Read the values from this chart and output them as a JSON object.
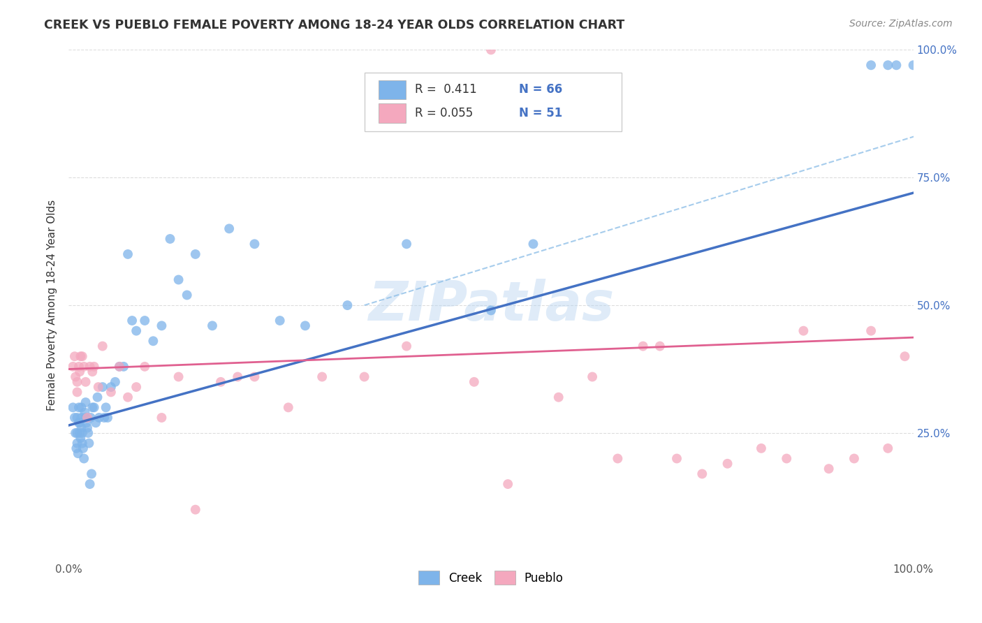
{
  "title": "CREEK VS PUEBLO FEMALE POVERTY AMONG 18-24 YEAR OLDS CORRELATION CHART",
  "source": "Source: ZipAtlas.com",
  "ylabel": "Female Poverty Among 18-24 Year Olds",
  "xlim": [
    0,
    1.0
  ],
  "ylim": [
    0,
    1.0
  ],
  "xticks": [
    0.0,
    0.25,
    0.5,
    0.75,
    1.0
  ],
  "xtick_labels": [
    "0.0%",
    "",
    "",
    "",
    "100.0%"
  ],
  "yticks": [
    0.25,
    0.5,
    0.75,
    1.0
  ],
  "right_ytick_labels": [
    "25.0%",
    "50.0%",
    "75.0%",
    "100.0%"
  ],
  "creek_color": "#7EB4EA",
  "pueblo_color": "#F4A8BE",
  "creek_line_color": "#4472C4",
  "pueblo_line_color": "#E06090",
  "dashed_line_color": "#90C0E8",
  "legend_r_creek": "0.411",
  "legend_n_creek": "66",
  "legend_r_pueblo": "0.055",
  "legend_n_pueblo": "51",
  "watermark": "ZIPatlas",
  "background_color": "#FFFFFF",
  "creek_r": 0.411,
  "pueblo_r": 0.055,
  "creek_points_x": [
    0.005,
    0.007,
    0.008,
    0.009,
    0.01,
    0.01,
    0.01,
    0.011,
    0.012,
    0.012,
    0.013,
    0.013,
    0.014,
    0.015,
    0.015,
    0.015,
    0.016,
    0.016,
    0.017,
    0.018,
    0.019,
    0.02,
    0.02,
    0.021,
    0.022,
    0.023,
    0.024,
    0.025,
    0.026,
    0.027,
    0.028,
    0.03,
    0.032,
    0.034,
    0.036,
    0.04,
    0.042,
    0.044,
    0.046,
    0.05,
    0.055,
    0.06,
    0.065,
    0.07,
    0.075,
    0.08,
    0.09,
    0.1,
    0.11,
    0.12,
    0.13,
    0.14,
    0.15,
    0.17,
    0.19,
    0.22,
    0.25,
    0.28,
    0.33,
    0.4,
    0.5,
    0.55,
    0.95,
    0.97,
    0.98,
    1.0
  ],
  "creek_points_y": [
    0.3,
    0.28,
    0.25,
    0.22,
    0.28,
    0.25,
    0.23,
    0.21,
    0.3,
    0.27,
    0.27,
    0.25,
    0.24,
    0.3,
    0.28,
    0.26,
    0.25,
    0.23,
    0.22,
    0.2,
    0.29,
    0.31,
    0.28,
    0.27,
    0.26,
    0.25,
    0.23,
    0.15,
    0.28,
    0.17,
    0.3,
    0.3,
    0.27,
    0.32,
    0.28,
    0.34,
    0.28,
    0.3,
    0.28,
    0.34,
    0.35,
    0.38,
    0.38,
    0.6,
    0.47,
    0.45,
    0.47,
    0.43,
    0.46,
    0.63,
    0.55,
    0.52,
    0.6,
    0.46,
    0.65,
    0.62,
    0.47,
    0.46,
    0.5,
    0.62,
    0.49,
    0.62,
    0.97,
    0.97,
    0.97,
    0.97
  ],
  "pueblo_points_x": [
    0.005,
    0.007,
    0.008,
    0.01,
    0.01,
    0.012,
    0.013,
    0.014,
    0.016,
    0.018,
    0.02,
    0.022,
    0.025,
    0.028,
    0.03,
    0.035,
    0.04,
    0.05,
    0.06,
    0.07,
    0.08,
    0.09,
    0.11,
    0.13,
    0.15,
    0.18,
    0.2,
    0.22,
    0.26,
    0.3,
    0.35,
    0.4,
    0.48,
    0.52,
    0.58,
    0.62,
    0.65,
    0.68,
    0.7,
    0.72,
    0.75,
    0.78,
    0.82,
    0.85,
    0.87,
    0.9,
    0.93,
    0.95,
    0.97,
    0.99,
    0.5
  ],
  "pueblo_points_y": [
    0.38,
    0.4,
    0.36,
    0.35,
    0.33,
    0.38,
    0.37,
    0.4,
    0.4,
    0.38,
    0.35,
    0.28,
    0.38,
    0.37,
    0.38,
    0.34,
    0.42,
    0.33,
    0.38,
    0.32,
    0.34,
    0.38,
    0.28,
    0.36,
    0.1,
    0.35,
    0.36,
    0.36,
    0.3,
    0.36,
    0.36,
    0.42,
    0.35,
    0.15,
    0.32,
    0.36,
    0.2,
    0.42,
    0.42,
    0.2,
    0.17,
    0.19,
    0.22,
    0.2,
    0.45,
    0.18,
    0.2,
    0.45,
    0.22,
    0.4,
    1.0
  ]
}
